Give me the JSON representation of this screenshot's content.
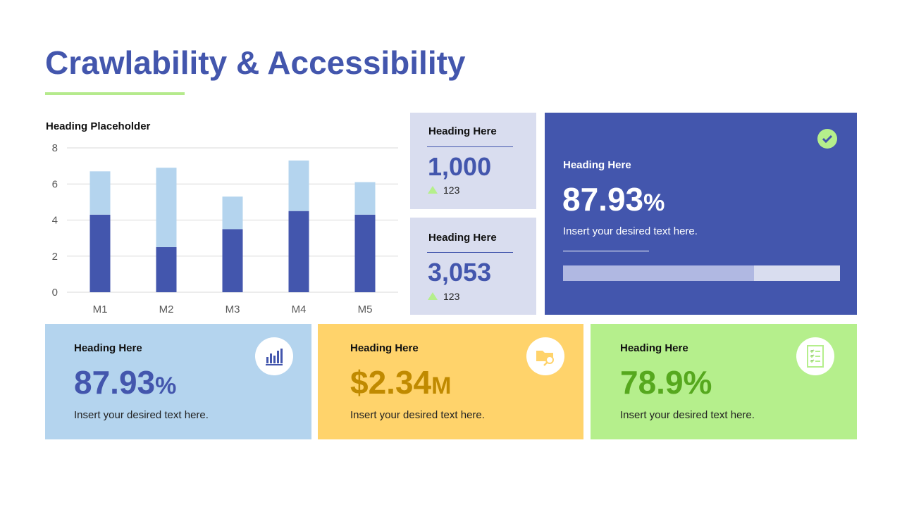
{
  "title": "Crawlability & Accessibility",
  "colors": {
    "primary": "#4356ad",
    "light_blue": "#b4d4ee",
    "yellow": "#ffd36b",
    "green": "#b5ef8c",
    "lavender": "#d9ddef"
  },
  "chart_data": {
    "type": "bar",
    "stacked": true,
    "title": "Heading Placeholder",
    "categories": [
      "M1",
      "M2",
      "M3",
      "M4",
      "M5"
    ],
    "series": [
      {
        "values": [
          4.3,
          2.5,
          3.5,
          4.5,
          4.3
        ],
        "color": "#4356ad"
      },
      {
        "values": [
          2.4,
          4.4,
          1.8,
          2.8,
          1.8
        ],
        "color": "#b4d4ee"
      }
    ],
    "ylim": [
      0,
      8
    ],
    "yticks": [
      "0",
      "2",
      "4",
      "6",
      "8"
    ],
    "grid": true
  },
  "small_cards": [
    {
      "heading": "Heading Here",
      "value": "1,000",
      "delta": "123",
      "delta_icon": "triangle-up-icon"
    },
    {
      "heading": "Heading Here",
      "value": "3,053",
      "delta": "123",
      "delta_icon": "triangle-up-icon"
    }
  ],
  "main_card": {
    "heading": "Heading Here",
    "value": "87.93",
    "unit": "%",
    "text": "Insert your desired text here.",
    "progress_percent": 69,
    "icon": "check-circle-icon"
  },
  "bottom_cards": [
    {
      "heading": "Heading Here",
      "value": "87.93",
      "unit": "%",
      "text": "Insert your desired text here.",
      "icon": "bar-chart-icon"
    },
    {
      "heading": "Heading Here",
      "value": "$2.34",
      "unit": "M",
      "text": "Insert your desired text here.",
      "icon": "folder-search-icon"
    },
    {
      "heading": "Heading Here",
      "value": "78.9%",
      "unit": "",
      "text": "Insert your desired text here.",
      "icon": "checklist-icon"
    }
  ]
}
